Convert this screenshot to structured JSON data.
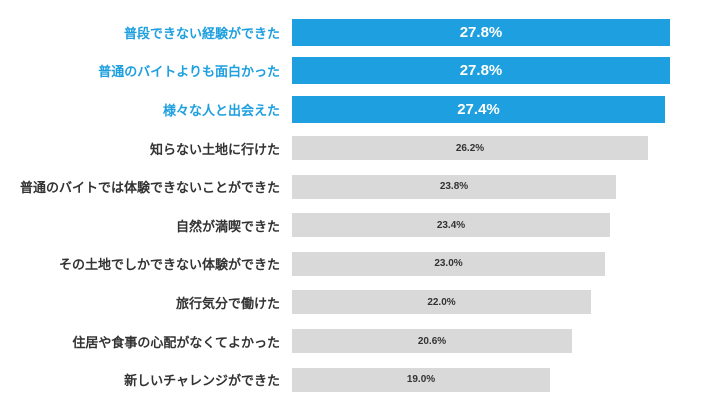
{
  "chart_data": {
    "type": "bar",
    "orientation": "horizontal",
    "title": "",
    "xlabel": "",
    "ylabel": "",
    "xlim": [
      0,
      27.8
    ],
    "grid": false,
    "legend": "none",
    "categories": [
      "普段できない経験ができた",
      "普通のバイトよりも面白かった",
      "様々な人と出会えた",
      "知らない土地に行けた",
      "普通のバイトでは体験できないことができた",
      "自然が満喫できた",
      "その土地でしかできない体験ができた",
      "旅行気分で働けた",
      "住居や食事の心配がなくてよかった",
      "新しいチャレンジができた"
    ],
    "values": [
      27.8,
      27.8,
      27.4,
      26.2,
      23.8,
      23.4,
      23.0,
      22.0,
      20.6,
      19.0
    ],
    "value_labels": [
      "27.8%",
      "27.8%",
      "27.4%",
      "26.2%",
      "23.8%",
      "23.4%",
      "23.0%",
      "22.0%",
      "20.6%",
      "19.0%"
    ],
    "highlighted_count": 3,
    "colors": {
      "highlight_bar": "#1e9fdf",
      "highlight_label_text": "#1e9fdf",
      "highlight_value_text": "#ffffff",
      "normal_bar": "#d9d9d9",
      "normal_label_text": "#333333",
      "normal_value_text": "#333333",
      "background": "#ffffff"
    }
  }
}
